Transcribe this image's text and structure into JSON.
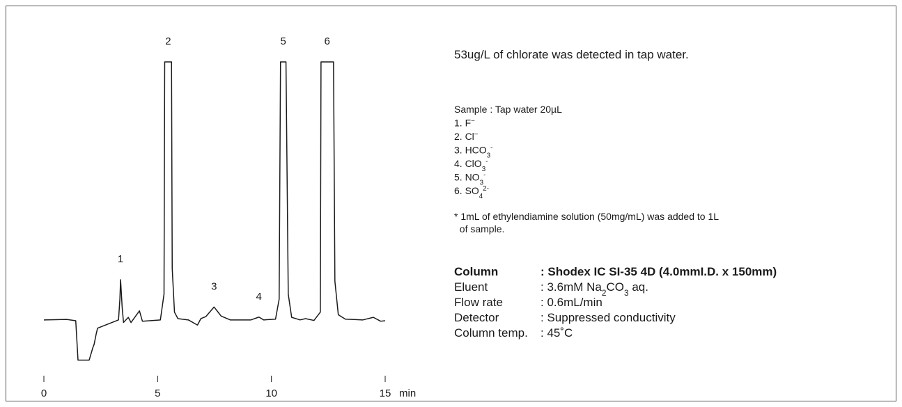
{
  "chart_data": {
    "type": "line",
    "x": [
      0,
      1,
      1.4,
      1.5,
      1.99,
      2.15,
      2.21,
      2.3,
      2.36,
      3.28,
      3.34,
      3.37,
      3.44,
      3.5,
      3.71,
      3.83,
      4.2,
      4.33,
      5.12,
      5.28,
      5.31,
      5.61,
      5.64,
      5.74,
      5.89,
      6.35,
      6.75,
      6.9,
      7.12,
      7.48,
      7.79,
      8.19,
      9.1,
      9.45,
      9.66,
      10.18,
      10.34,
      10.4,
      10.64,
      10.74,
      10.89,
      11.26,
      11.5,
      11.87,
      12.15,
      12.18,
      12.73,
      12.79,
      12.94,
      13.25,
      14.02,
      14.48,
      14.8,
      15
    ],
    "series": [
      {
        "color": "#1a1a1a",
        "values": [
          0,
          0.2,
          -0.3,
          -15.6,
          -15.6,
          -10.8,
          -9.4,
          -5.4,
          -3.2,
          0,
          8,
          15.6,
          5,
          -1,
          1,
          -1,
          3.5,
          -0.5,
          0,
          10,
          100,
          100,
          20,
          3,
          0.5,
          0,
          -2,
          0.5,
          1.3,
          5,
          1.5,
          0,
          0,
          1.1,
          0,
          0.3,
          8,
          100,
          100,
          10,
          1,
          0,
          0.5,
          -0.2,
          3,
          100,
          100,
          15,
          2,
          0.3,
          0,
          1,
          -0.5,
          -0.3
        ]
      }
    ],
    "xlim": [
      0,
      15
    ],
    "xticks": [
      0,
      5,
      10,
      15
    ],
    "ylim": [
      -20,
      100
    ],
    "x_label": "min",
    "annotations": [
      {
        "text": "1",
        "x": 3.37
      },
      {
        "text": "2",
        "x": 5.46
      },
      {
        "text": "3",
        "x": 7.48
      },
      {
        "text": "4",
        "x": 9.45
      },
      {
        "text": "5",
        "x": 10.52
      },
      {
        "text": "6",
        "x": 12.45
      }
    ]
  },
  "notes": {
    "headline": "53ug/L of chlorate was detected in tap water.",
    "sample": [
      [
        {
          "text": "Sample : Tap water 20µL"
        }
      ],
      [
        {
          "text": "1. F"
        },
        {
          "text": "−",
          "script": "sup"
        }
      ],
      [
        {
          "text": "2. Cl"
        },
        {
          "text": "−",
          "script": "sup"
        }
      ],
      [
        {
          "text": "3. HCO"
        },
        {
          "text": "3",
          "script": "sub"
        },
        {
          "text": "-",
          "script": "sup"
        }
      ],
      [
        {
          "text": "4. ClO"
        },
        {
          "text": "3",
          "script": "sub"
        },
        {
          "text": "-",
          "script": "sup"
        }
      ],
      [
        {
          "text": "5. NO"
        },
        {
          "text": "3",
          "script": "sub"
        },
        {
          "text": "-",
          "script": "sup"
        }
      ],
      [
        {
          "text": "6. SO"
        },
        {
          "text": "4",
          "script": "sub"
        },
        {
          "text": "2-",
          "script": "sup"
        }
      ]
    ],
    "footnote": [
      "* 1mL of ethylendiamine solution (50mg/mL) was added to 1L",
      "  of sample."
    ],
    "conditions": [
      {
        "label": "Column",
        "value": [
          {
            "text": ": Shodex IC SI-35 4D (4.0mmI.D. x 150mm)"
          }
        ],
        "bold": true
      },
      {
        "label": "Eluent",
        "value": [
          {
            "text": ": 3.6mM Na"
          },
          {
            "text": "2",
            "script": "sub"
          },
          {
            "text": "CO"
          },
          {
            "text": "3",
            "script": "sub"
          },
          {
            "text": " aq."
          }
        ]
      },
      {
        "label": "Flow rate",
        "value": [
          {
            "text": ": 0.6mL/min"
          }
        ]
      },
      {
        "label": "Detector",
        "value": [
          {
            "text": ": Suppressed conductivity"
          }
        ]
      },
      {
        "label": "Column temp.",
        "value": [
          {
            "text": ": 45˚C"
          }
        ]
      }
    ]
  }
}
